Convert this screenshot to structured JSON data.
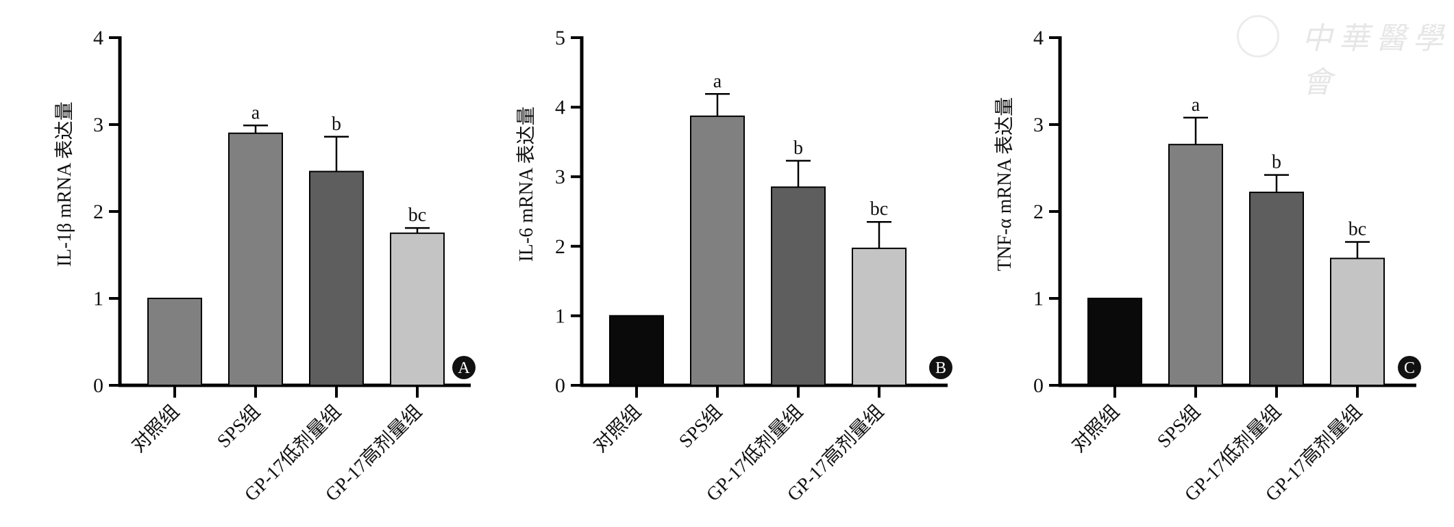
{
  "watermark": "中華醫學會",
  "chart_data": [
    {
      "type": "bar",
      "panel_label": "A",
      "ylabel": "IL-1β mRNA 表达量",
      "ylim": [
        0,
        4
      ],
      "yticks": [
        "0",
        "1",
        "2",
        "3",
        "4"
      ],
      "categories": [
        "对照组",
        "SPS组",
        "GP-17低剂量组",
        "GP-17高剂量组"
      ],
      "values": [
        1.0,
        2.9,
        2.46,
        1.75
      ],
      "errors": [
        0,
        0.09,
        0.4,
        0.06
      ],
      "annotations": [
        "",
        "a",
        "b",
        "bc"
      ],
      "colors": [
        "#808080",
        "#808080",
        "#5e5e5e",
        "#c4c4c4"
      ]
    },
    {
      "type": "bar",
      "panel_label": "B",
      "ylabel": "IL-6 mRNA 表达量",
      "ylim": [
        0,
        5
      ],
      "yticks": [
        "0",
        "1",
        "2",
        "3",
        "4",
        "5"
      ],
      "categories": [
        "对照组",
        "SPS组",
        "GP-17低剂量组",
        "GP-17高剂量组"
      ],
      "values": [
        1.0,
        3.87,
        2.85,
        1.97
      ],
      "errors": [
        0,
        0.32,
        0.38,
        0.38
      ],
      "annotations": [
        "",
        "a",
        "b",
        "bc"
      ],
      "colors": [
        "#0a0a0a",
        "#808080",
        "#5e5e5e",
        "#c4c4c4"
      ]
    },
    {
      "type": "bar",
      "panel_label": "C",
      "ylabel": "TNF-α mRNA 表达量",
      "ylim": [
        0,
        4
      ],
      "yticks": [
        "0",
        "1",
        "2",
        "3",
        "4"
      ],
      "categories": [
        "对照组",
        "SPS组",
        "GP-17低剂量组",
        "GP-17高剂量组"
      ],
      "values": [
        1.0,
        2.77,
        2.22,
        1.46
      ],
      "errors": [
        0,
        0.31,
        0.2,
        0.19
      ],
      "annotations": [
        "",
        "a",
        "b",
        "bc"
      ],
      "colors": [
        "#0a0a0a",
        "#808080",
        "#5e5e5e",
        "#c4c4c4"
      ]
    }
  ]
}
